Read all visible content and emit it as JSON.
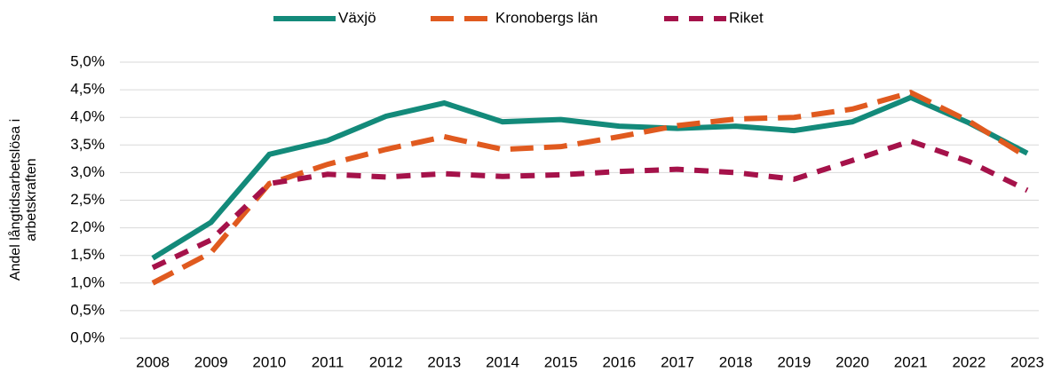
{
  "chart_data": {
    "type": "line",
    "categories": [
      "2008",
      "2009",
      "2010",
      "2011",
      "2012",
      "2013",
      "2014",
      "2015",
      "2016",
      "2017",
      "2018",
      "2019",
      "2020",
      "2021",
      "2022",
      "2023"
    ],
    "ylabel": [
      "Andel långtidsarbetslösa i",
      "arbetskraften"
    ],
    "series": [
      {
        "name": "Växjö",
        "color": "#138a7a",
        "style": "solid",
        "values": [
          1.45,
          2.1,
          3.33,
          3.58,
          4.02,
          4.26,
          3.92,
          3.96,
          3.84,
          3.8,
          3.84,
          3.76,
          3.92,
          4.36,
          3.9,
          3.35
        ]
      },
      {
        "name": "Kronobergs län",
        "color": "#e05a1f",
        "style": "long-dash",
        "values": [
          1.0,
          1.55,
          2.8,
          3.15,
          3.42,
          3.65,
          3.42,
          3.47,
          3.65,
          3.85,
          3.97,
          4.0,
          4.15,
          4.45,
          3.93,
          3.28
        ]
      },
      {
        "name": "Riket",
        "color": "#a5124a",
        "style": "dash",
        "values": [
          1.28,
          1.78,
          2.8,
          2.97,
          2.92,
          2.98,
          2.93,
          2.96,
          3.02,
          3.06,
          3.0,
          2.88,
          3.22,
          3.57,
          3.2,
          2.68
        ]
      }
    ],
    "ylim": [
      0,
      5
    ],
    "yticks": [
      {
        "value": 0,
        "label": "0,0%"
      },
      {
        "value": 0.5,
        "label": "0,5%"
      },
      {
        "value": 1,
        "label": "1,0%"
      },
      {
        "value": 1.5,
        "label": "1,5%"
      },
      {
        "value": 2,
        "label": "2,0%"
      },
      {
        "value": 2.5,
        "label": "2,5%"
      },
      {
        "value": 3,
        "label": "3,0%"
      },
      {
        "value": 3.5,
        "label": "3,5%"
      },
      {
        "value": 4,
        "label": "4,0%"
      },
      {
        "value": 4.5,
        "label": "4,5%"
      },
      {
        "value": 5,
        "label": "5,0%"
      }
    ],
    "grid": true,
    "legend": "top"
  }
}
